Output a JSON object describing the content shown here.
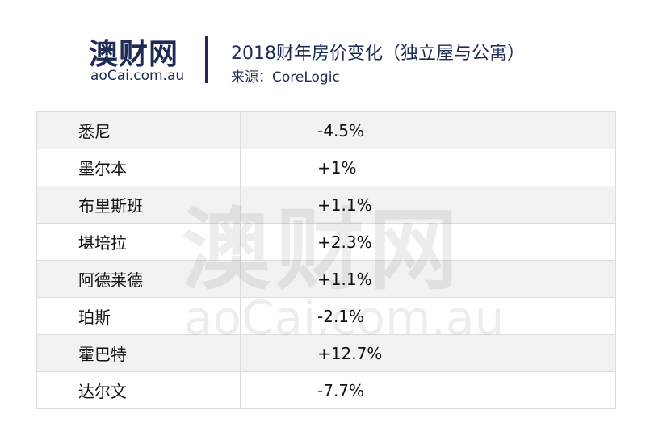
{
  "header": {
    "logo": "澳财网",
    "logo_url": "aoCai.com.au",
    "title": "2018财年房价变化（独立屋与公寓）",
    "source": "来源：CoreLogic"
  },
  "table": {
    "rows": [
      [
        "悉尼",
        "-4.5%"
      ],
      [
        "墨尔本",
        "+1%"
      ],
      [
        "布里斯班",
        "+1.1%"
      ],
      [
        "堪培拉",
        "+2.3%"
      ],
      [
        "阿德莱德",
        "+1.1%"
      ],
      [
        "珀斯",
        "-2.1%"
      ],
      [
        "霍巴特",
        "+12.7%"
      ],
      [
        "达尔文",
        "-7.7%"
      ]
    ]
  }
}
